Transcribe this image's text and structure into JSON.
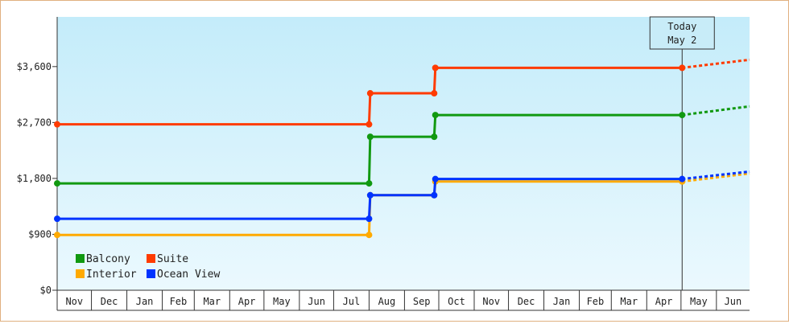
{
  "chart_data": {
    "type": "line",
    "step": true,
    "ylim": [
      0,
      4400
    ],
    "y_ticks": [
      {
        "value": 0,
        "label": "$0"
      },
      {
        "value": 900,
        "label": "$900"
      },
      {
        "value": 1800,
        "label": "$1,800"
      },
      {
        "value": 2700,
        "label": "$2,700"
      },
      {
        "value": 3600,
        "label": "$3,600"
      }
    ],
    "x_range": [
      "2013-11-01",
      "2015-06-30"
    ],
    "months": [
      {
        "label": "Nov",
        "start": "2013-11-01",
        "end": "2013-12-01"
      },
      {
        "label": "Dec",
        "start": "2013-12-01",
        "end": "2014-01-01"
      },
      {
        "label": "Jan",
        "start": "2014-01-01",
        "end": "2014-02-01"
      },
      {
        "label": "Feb",
        "start": "2014-02-01",
        "end": "2014-03-01"
      },
      {
        "label": "Mar",
        "start": "2014-03-01",
        "end": "2014-04-01"
      },
      {
        "label": "Apr",
        "start": "2014-04-01",
        "end": "2014-05-01"
      },
      {
        "label": "May",
        "start": "2014-05-01",
        "end": "2014-06-01"
      },
      {
        "label": "Jun",
        "start": "2014-06-01",
        "end": "2014-07-01"
      },
      {
        "label": "Jul",
        "start": "2014-07-01",
        "end": "2014-08-01"
      },
      {
        "label": "Aug",
        "start": "2014-08-01",
        "end": "2014-09-01"
      },
      {
        "label": "Sep",
        "start": "2014-09-01",
        "end": "2014-10-01"
      },
      {
        "label": "Oct",
        "start": "2014-10-01",
        "end": "2014-11-01"
      },
      {
        "label": "Nov",
        "start": "2014-11-01",
        "end": "2014-12-01"
      },
      {
        "label": "Dec",
        "start": "2014-12-01",
        "end": "2015-01-01"
      },
      {
        "label": "Jan",
        "start": "2015-01-01",
        "end": "2015-02-01"
      },
      {
        "label": "Feb",
        "start": "2015-02-01",
        "end": "2015-03-01"
      },
      {
        "label": "Mar",
        "start": "2015-03-01",
        "end": "2015-04-01"
      },
      {
        "label": "Apr",
        "start": "2015-04-01",
        "end": "2015-05-01"
      },
      {
        "label": "May",
        "start": "2015-05-01",
        "end": "2015-06-01"
      },
      {
        "label": "Jun",
        "start": "2015-06-01",
        "end": "2015-06-30"
      }
    ],
    "today": {
      "label": "Today",
      "date_label": "May 2",
      "date": "2015-05-02"
    },
    "grid": false,
    "legend": {
      "position": "bottom-left"
    },
    "series": [
      {
        "name": "Balcony",
        "color": "#119911",
        "points": [
          {
            "date": "2013-11-01",
            "value": 1720
          },
          {
            "date": "2014-08-01",
            "value": 1720
          },
          {
            "date": "2014-08-02",
            "value": 2470
          },
          {
            "date": "2014-09-27",
            "value": 2470
          },
          {
            "date": "2014-09-28",
            "value": 2820
          },
          {
            "date": "2015-05-02",
            "value": 2820
          }
        ],
        "projection": [
          {
            "date": "2015-05-02",
            "value": 2820
          },
          {
            "date": "2015-06-30",
            "value": 2960
          }
        ]
      },
      {
        "name": "Suite",
        "color": "#ff3b00",
        "points": [
          {
            "date": "2013-11-01",
            "value": 2670
          },
          {
            "date": "2014-08-01",
            "value": 2670
          },
          {
            "date": "2014-08-02",
            "value": 3170
          },
          {
            "date": "2014-09-27",
            "value": 3170
          },
          {
            "date": "2014-09-28",
            "value": 3580
          },
          {
            "date": "2015-05-02",
            "value": 3580
          }
        ],
        "projection": [
          {
            "date": "2015-05-02",
            "value": 3580
          },
          {
            "date": "2015-06-30",
            "value": 3710
          }
        ]
      },
      {
        "name": "Interior",
        "color": "#ffaa00",
        "points": [
          {
            "date": "2013-11-01",
            "value": 890
          },
          {
            "date": "2014-08-01",
            "value": 890
          },
          {
            "date": "2014-08-02",
            "value": 1530
          },
          {
            "date": "2014-09-27",
            "value": 1530
          },
          {
            "date": "2014-09-28",
            "value": 1750
          },
          {
            "date": "2015-05-02",
            "value": 1750
          }
        ],
        "projection": [
          {
            "date": "2015-05-02",
            "value": 1750
          },
          {
            "date": "2015-06-30",
            "value": 1880
          }
        ]
      },
      {
        "name": "Ocean View",
        "color": "#0033ff",
        "points": [
          {
            "date": "2013-11-01",
            "value": 1150
          },
          {
            "date": "2014-08-01",
            "value": 1150
          },
          {
            "date": "2014-08-02",
            "value": 1530
          },
          {
            "date": "2014-09-27",
            "value": 1530
          },
          {
            "date": "2014-09-28",
            "value": 1790
          },
          {
            "date": "2015-05-02",
            "value": 1790
          }
        ],
        "projection": [
          {
            "date": "2015-05-02",
            "value": 1790
          },
          {
            "date": "2015-06-30",
            "value": 1910
          }
        ]
      }
    ]
  }
}
